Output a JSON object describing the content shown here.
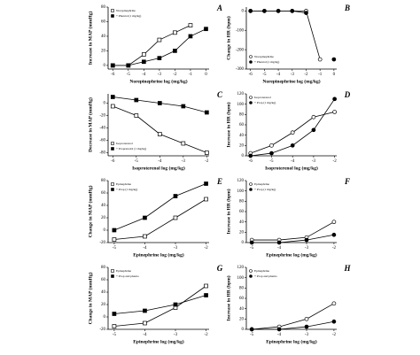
{
  "chart_data": [
    {
      "type": "line",
      "label": "A",
      "ylabel": "Increase in MAP (mmHg)",
      "xlabel": "Norepinephrine log (mg/kg)",
      "x": [
        -6,
        -5,
        -4,
        -3,
        -2,
        -1,
        0
      ],
      "xlim": [
        -6.3,
        0.2
      ],
      "xticks": [
        -6,
        -5,
        -4,
        -3,
        -2,
        -1,
        0
      ],
      "ylim": [
        -5,
        80
      ],
      "yticks": [
        0,
        20,
        40,
        60,
        80
      ],
      "legend": "upper left",
      "marker_shape": "square",
      "series": [
        {
          "name": "Norepinephrine",
          "color": "#000000",
          "marker": "open",
          "values": [
            0,
            0,
            15,
            35,
            45,
            55,
            null
          ]
        },
        {
          "name": "+ Phentol (1 mg/kg)",
          "color": "#000000",
          "marker": "filled",
          "values": [
            0,
            0,
            5,
            10,
            20,
            40,
            50
          ]
        }
      ]
    },
    {
      "type": "line",
      "label": "B",
      "ylabel": "Change in HR (bpm)",
      "xlabel": "Norepinephrine log (mg/kg)",
      "x": [
        -6,
        -5,
        -4,
        -3,
        -2,
        -1,
        0
      ],
      "xlim": [
        -6.3,
        0.2
      ],
      "xticks": [
        -6,
        -5,
        -4,
        -3,
        -2,
        -1,
        0
      ],
      "ylim": [
        -300,
        20
      ],
      "yticks": [
        0,
        -100,
        -200,
        -300
      ],
      "legend": "lower left",
      "marker_shape": "circle",
      "series": [
        {
          "name": "Norepinephrine",
          "color": "#000000",
          "marker": "open",
          "values": [
            0,
            0,
            0,
            0,
            0,
            -250,
            null
          ]
        },
        {
          "name": "+ Phentol (1 mg/kg)",
          "color": "#000000",
          "marker": "filled",
          "values": [
            0,
            0,
            0,
            0,
            -10,
            null,
            -250
          ]
        }
      ]
    },
    {
      "type": "line",
      "label": "C",
      "ylabel": "Decrease in MAP (mmHg)",
      "xlabel": "Isoproterenol log (mg/kg)",
      "x": [
        -6,
        -5,
        -4,
        -3,
        -2
      ],
      "xlim": [
        -6.2,
        -1.9
      ],
      "xticks": [
        -6,
        -5,
        -4,
        -3,
        -2
      ],
      "ylim": [
        -85,
        15
      ],
      "yticks": [
        0,
        -20,
        -40,
        -60,
        -80
      ],
      "legend": "lower left",
      "marker_shape": "square",
      "series": [
        {
          "name": "Isoproterenol",
          "color": "#000000",
          "marker": "open",
          "values": [
            -5,
            -20,
            -50,
            -65,
            -80
          ]
        },
        {
          "name": "+ Propranolol (1 mg/kg)",
          "color": "#000000",
          "marker": "filled",
          "values": [
            10,
            5,
            0,
            -5,
            -15
          ]
        }
      ]
    },
    {
      "type": "line",
      "label": "D",
      "ylabel": "Increase in HR (bpm)",
      "xlabel": "Isoproterenol log (mg/kg)",
      "x": [
        -6,
        -5,
        -4,
        -3,
        -2
      ],
      "xlim": [
        -6.2,
        -1.9
      ],
      "xticks": [
        -6,
        -5,
        -4,
        -3,
        -2
      ],
      "ylim": [
        0,
        120
      ],
      "yticks": [
        0,
        20,
        40,
        60,
        80,
        100,
        120
      ],
      "legend": "upper left",
      "marker_shape": "circle",
      "series": [
        {
          "name": "Isoproterenol",
          "color": "#000000",
          "marker": "open",
          "values": [
            5,
            20,
            45,
            75,
            85
          ]
        },
        {
          "name": "+ Prop (1 mg/kg)",
          "color": "#000000",
          "marker": "filled",
          "values": [
            0,
            5,
            20,
            50,
            110
          ]
        }
      ]
    },
    {
      "type": "line",
      "label": "E",
      "ylabel": "Change in MAP (mmHg)",
      "xlabel": "Epinephrine log (mg/kg)",
      "x": [
        -5,
        -4,
        -3,
        -2
      ],
      "xlim": [
        -5.2,
        -1.9
      ],
      "xticks": [
        -5,
        -4,
        -3,
        -2
      ],
      "ylim": [
        -20,
        80
      ],
      "yticks": [
        -20,
        0,
        20,
        40,
        60,
        80
      ],
      "legend": "upper left",
      "marker_shape": "square",
      "series": [
        {
          "name": "Epinephrine",
          "color": "#000000",
          "marker": "open",
          "values": [
            -15,
            -10,
            20,
            50
          ]
        },
        {
          "name": "+ Prop (1 mg/kg)",
          "color": "#000000",
          "marker": "filled",
          "values": [
            0,
            20,
            55,
            75
          ]
        }
      ]
    },
    {
      "type": "line",
      "label": "F",
      "ylabel": "Increase in HR (bpm)",
      "xlabel": "Epinephrine log (mg/kg)",
      "x": [
        -5,
        -4,
        -3,
        -2
      ],
      "xlim": [
        -5.2,
        -1.9
      ],
      "xticks": [
        -5,
        -4,
        -3,
        -2
      ],
      "ylim": [
        0,
        120
      ],
      "yticks": [
        0,
        20,
        40,
        60,
        80,
        100,
        120
      ],
      "legend": "upper left",
      "marker_shape": "circle",
      "series": [
        {
          "name": "Epinephrine",
          "color": "#000000",
          "marker": "open",
          "values": [
            5,
            5,
            10,
            40
          ]
        },
        {
          "name": "+ Prop (1 mg/kg)",
          "color": "#000000",
          "marker": "filled",
          "values": [
            0,
            0,
            5,
            15
          ]
        }
      ]
    },
    {
      "type": "line",
      "label": "G",
      "ylabel": "Change in MAP (mmHg)",
      "xlabel": "Epinephrine log (mg/kg)",
      "x": [
        -5,
        -4,
        -3,
        -2
      ],
      "xlim": [
        -5.2,
        -1.9
      ],
      "xticks": [
        -5,
        -4,
        -3,
        -2
      ],
      "ylim": [
        -20,
        80
      ],
      "yticks": [
        -20,
        0,
        20,
        40,
        60,
        80
      ],
      "legend": "upper left",
      "marker_shape": "square",
      "series": [
        {
          "name": "Epinephrine",
          "color": "#000000",
          "marker": "open",
          "values": [
            -15,
            -10,
            15,
            50
          ]
        },
        {
          "name": "+ Prop and phento",
          "color": "#000000",
          "marker": "filled",
          "values": [
            5,
            10,
            20,
            35
          ]
        }
      ]
    },
    {
      "type": "line",
      "label": "H",
      "ylabel": "Increase in HR (bpm)",
      "xlabel": "Epinephrine log (mg/kg)",
      "x": [
        -5,
        -4,
        -3,
        -2
      ],
      "xlim": [
        -5.2,
        -1.9
      ],
      "xticks": [
        -5,
        -4,
        -3,
        -2
      ],
      "ylim": [
        0,
        120
      ],
      "yticks": [
        0,
        20,
        40,
        60,
        80,
        100,
        120
      ],
      "legend": "upper left",
      "marker_shape": "circle",
      "series": [
        {
          "name": "Epinephrine",
          "color": "#000000",
          "marker": "open",
          "values": [
            0,
            5,
            20,
            50
          ]
        },
        {
          "name": "+ Prop and phento",
          "color": "#000000",
          "marker": "filled",
          "values": [
            0,
            0,
            5,
            15
          ]
        }
      ]
    }
  ]
}
